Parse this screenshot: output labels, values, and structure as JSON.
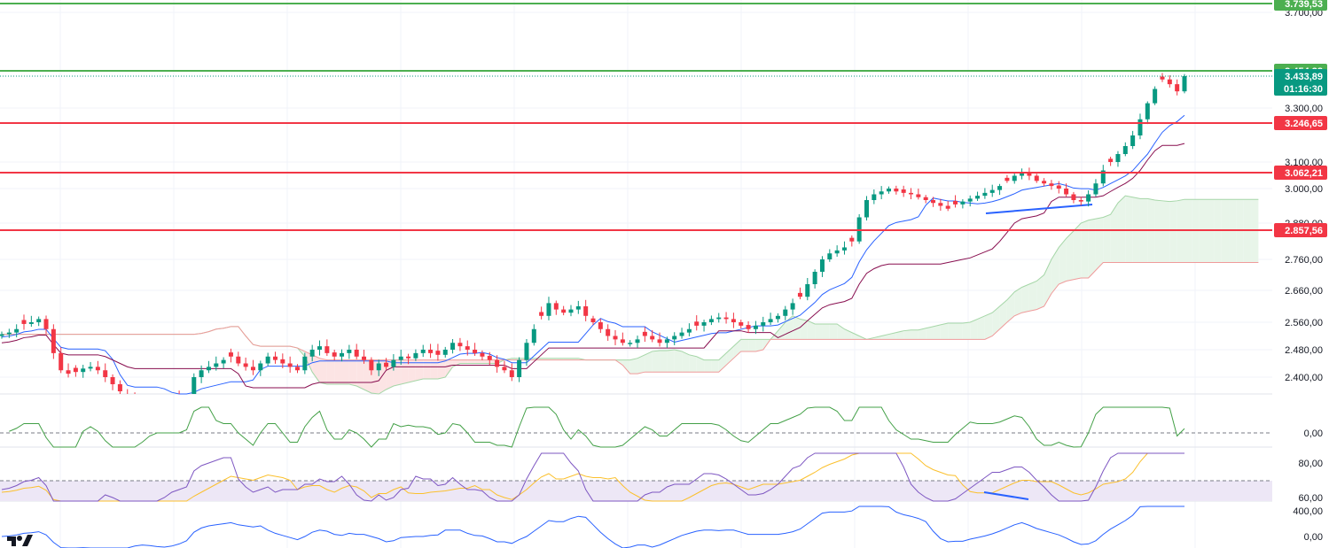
{
  "chart_data": {
    "type": "candlestick",
    "main_pane": {
      "ylim": [
        2340,
        3750
      ],
      "price_ticks": [
        "3.700,00",
        "3.300,00",
        "3.100,00",
        "3.000,00",
        "2.880,00",
        "2.760,00",
        "2.660,00",
        "2.560,00",
        "2.480,00",
        "2.400,00"
      ],
      "price_tick_values": [
        3700,
        3300,
        3100,
        3000,
        2880,
        2760,
        2660,
        2560,
        2480,
        2400
      ],
      "horizontal_levels": [
        {
          "label": "3.739,53",
          "value": 3739.53,
          "color": "#4caf50"
        },
        {
          "label": "3.454,38",
          "value": 3454.38,
          "color": "#4caf50"
        },
        {
          "label": "3.246,65",
          "value": 3246.65,
          "color": "#f23645"
        },
        {
          "label": "3.062,21",
          "value": 3062.21,
          "color": "#f23645"
        },
        {
          "label": "2.857,56",
          "value": 2857.56,
          "color": "#f23645"
        }
      ],
      "current_price": {
        "label": "3.433,89",
        "value": 3433.89,
        "countdown": "01:16:30",
        "color": "#089981"
      },
      "close_path": [
        2525,
        2530,
        2540,
        2555,
        2560,
        2570,
        2540,
        2470,
        2420,
        2410,
        2415,
        2425,
        2430,
        2420,
        2400,
        2380,
        2360,
        2340,
        2330,
        2330,
        2330,
        2330,
        2330,
        2330,
        2330,
        2340,
        2400,
        2420,
        2430,
        2440,
        2450,
        2460,
        2440,
        2430,
        2420,
        2440,
        2460,
        2450,
        2440,
        2430,
        2420,
        2460,
        2480,
        2490,
        2470,
        2460,
        2470,
        2480,
        2460,
        2450,
        2420,
        2440,
        2430,
        2450,
        2460,
        2455,
        2470,
        2480,
        2470,
        2465,
        2480,
        2500,
        2490,
        2480,
        2470,
        2460,
        2450,
        2430,
        2420,
        2400,
        2450,
        2500,
        2540,
        2580,
        2620,
        2600,
        2590,
        2600,
        2610,
        2580,
        2560,
        2540,
        2520,
        2510,
        2500,
        2500,
        2510,
        2520,
        2510,
        2500,
        2510,
        2520,
        2530,
        2540,
        2550,
        2560,
        2570,
        2575,
        2570,
        2560,
        2550,
        2540,
        2550,
        2560,
        2570,
        2580,
        2600,
        2620,
        2640,
        2680,
        2720,
        2760,
        2780,
        2790,
        2800,
        2820,
        2900,
        2960,
        2980,
        2990,
        3000,
        2990,
        2985,
        2980,
        2970,
        2960,
        2950,
        2940,
        2930,
        2945,
        2955,
        2965,
        2975,
        2985,
        2995,
        3010,
        3030,
        3050,
        3060,
        3050,
        3030,
        3020,
        3010,
        3000,
        2980,
        2960,
        2955,
        2980,
        3020,
        3070,
        3100,
        3130,
        3160,
        3200,
        3260,
        3320,
        3380,
        3420,
        3400,
        3370,
        3434
      ]
    },
    "indicator_panes": [
      {
        "name": "cci",
        "ticks": [
          "0,00"
        ],
        "tick_values": [
          0
        ]
      },
      {
        "name": "rsi",
        "ticks": [
          "80,00",
          "60,00"
        ],
        "tick_values": [
          80,
          60
        ]
      },
      {
        "name": "momentum",
        "ticks": [
          "400,00",
          "0,00"
        ],
        "tick_values": [
          400,
          0
        ]
      }
    ],
    "colors": {
      "bull": "#089981",
      "bear": "#f23645",
      "kijun": "#880e4f",
      "tenkan": "#2962ff",
      "cloud_bull": "#e8f5e9",
      "cloud_bear": "#fce4e4",
      "trend": "#2962ff",
      "rsi_line": "#7e57c2",
      "rsi_ma": "#fbc02d",
      "cci_line": "#43a047"
    }
  },
  "logo": {
    "name": "tradingview-logo"
  }
}
